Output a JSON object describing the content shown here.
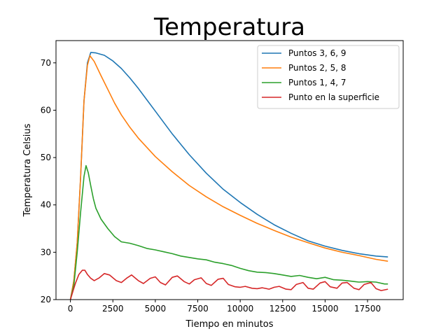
{
  "chart_data": {
    "type": "line",
    "title": "Temperatura",
    "xlabel": "Tiempo en minutos",
    "ylabel": "Temperatura Celsius",
    "xlim": [
      -850,
      19600
    ],
    "ylim": [
      20,
      74.7
    ],
    "xticks": [
      0,
      2500,
      5000,
      7500,
      10000,
      12500,
      15000,
      17500
    ],
    "yticks": [
      20,
      30,
      40,
      50,
      60,
      70
    ],
    "grid": false,
    "legend_position": "top-right",
    "series": [
      {
        "name": "Puntos 3, 6, 9",
        "color": "#1f77b4",
        "x": [
          0,
          200,
          400,
          600,
          800,
          1000,
          1200,
          1500,
          2000,
          2500,
          3000,
          3500,
          4000,
          4500,
          5000,
          6000,
          7000,
          8000,
          9000,
          10000,
          11000,
          12000,
          13000,
          14000,
          15000,
          16000,
          17000,
          18000,
          18700
        ],
        "y": [
          20,
          24,
          32,
          46,
          62,
          70,
          72.2,
          72.1,
          71.6,
          70.4,
          68.8,
          66.8,
          64.6,
          62.2,
          59.8,
          55,
          50.6,
          46.7,
          43.3,
          40.5,
          38,
          35.8,
          34,
          32.4,
          31.3,
          30.4,
          29.7,
          29.2,
          29.0
        ]
      },
      {
        "name": "Puntos 2, 5, 8",
        "color": "#ff7f0e",
        "x": [
          0,
          200,
          400,
          600,
          800,
          1000,
          1150,
          1400,
          1800,
          2200,
          2600,
          3000,
          3500,
          4000,
          5000,
          6000,
          7000,
          8000,
          9000,
          10000,
          11000,
          12000,
          13000,
          14000,
          15000,
          16000,
          17000,
          18000,
          18700
        ],
        "y": [
          20,
          24,
          32,
          46,
          62,
          69.5,
          71.5,
          70.3,
          67.3,
          64.4,
          61.5,
          59,
          56.4,
          54.1,
          50.2,
          47,
          44.1,
          41.7,
          39.6,
          37.8,
          36.1,
          34.6,
          33.2,
          32.0,
          30.9,
          30.0,
          29.3,
          28.5,
          28.1
        ]
      },
      {
        "name": "Puntos 1, 4, 7",
        "color": "#2ca02c",
        "x": [
          0,
          200,
          400,
          600,
          800,
          920,
          1050,
          1200,
          1350,
          1500,
          1800,
          2200,
          2600,
          3000,
          3500,
          4000,
          4500,
          5000,
          5500,
          6000,
          6500,
          7000,
          7500,
          8000,
          8500,
          9000,
          9500,
          10000,
          10500,
          11000,
          11500,
          12000,
          12500,
          13000,
          13500,
          14000,
          14500,
          15000,
          15500,
          16000,
          16500,
          17000,
          17500,
          18000,
          18500,
          18700
        ],
        "y": [
          20,
          23,
          30,
          38.5,
          46,
          48.3,
          46.8,
          44,
          41.3,
          39.3,
          37,
          35,
          33.3,
          32.2,
          31.9,
          31.4,
          30.8,
          30.5,
          30.1,
          29.7,
          29.2,
          28.9,
          28.6,
          28.4,
          27.9,
          27.6,
          27.2,
          26.6,
          26.1,
          25.8,
          25.7,
          25.5,
          25.2,
          24.9,
          25.1,
          24.7,
          24.4,
          24.7,
          24.2,
          24.1,
          23.9,
          23.7,
          23.8,
          23.7,
          23.3,
          23.3
        ]
      },
      {
        "name": "Punto en la superficie",
        "color": "#d62728",
        "x": [
          0,
          150,
          300,
          500,
          700,
          850,
          1000,
          1200,
          1400,
          1700,
          2000,
          2300,
          2700,
          3000,
          3300,
          3600,
          4000,
          4300,
          4700,
          5000,
          5300,
          5600,
          6000,
          6300,
          6700,
          7000,
          7300,
          7700,
          8000,
          8300,
          8700,
          9000,
          9300,
          9700,
          10000,
          10300,
          10700,
          11000,
          11300,
          11700,
          12000,
          12300,
          12700,
          13000,
          13300,
          13700,
          14000,
          14300,
          14700,
          15000,
          15300,
          15700,
          16000,
          16300,
          16700,
          17000,
          17300,
          17700,
          18000,
          18300,
          18700
        ],
        "y": [
          20,
          21.8,
          23.5,
          25.3,
          26.2,
          26.2,
          25.3,
          24.5,
          24,
          24.6,
          25.5,
          25.2,
          24,
          23.6,
          24.5,
          25.2,
          24,
          23.4,
          24.5,
          24.8,
          23.6,
          23.1,
          24.7,
          25,
          23.8,
          23.3,
          24.2,
          24.6,
          23.4,
          23,
          24.3,
          24.5,
          23.2,
          22.7,
          22.6,
          22.8,
          22.4,
          22.3,
          22.5,
          22.2,
          22.6,
          22.8,
          22.2,
          22.1,
          23.2,
          23.6,
          22.4,
          22.2,
          23.5,
          23.8,
          22.7,
          22.4,
          23.5,
          23.6,
          22.4,
          22.1,
          23.2,
          23.6,
          22.3,
          21.9,
          22.2
        ]
      }
    ]
  }
}
